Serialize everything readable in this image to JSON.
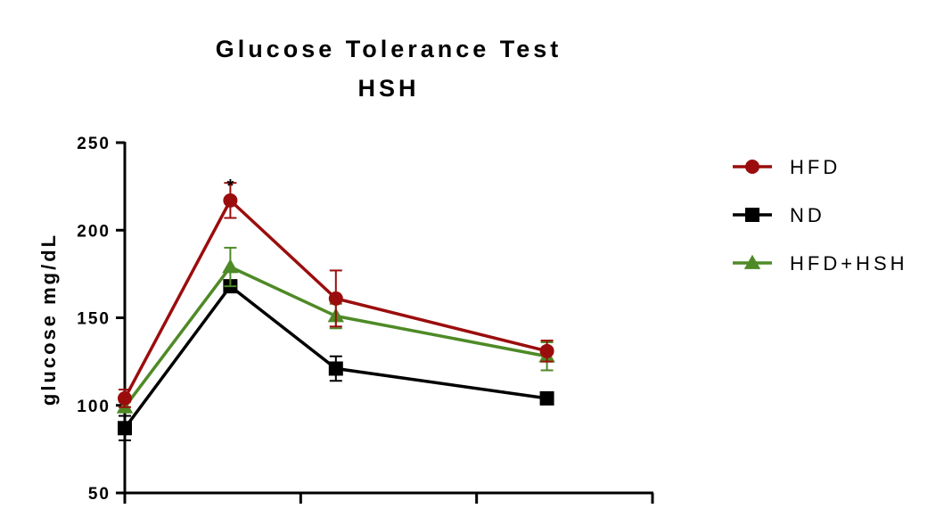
{
  "chart_data": {
    "type": "line",
    "title": "Glucose Tolerance Test",
    "subtitle": "HSH",
    "xlabel": "",
    "ylabel": "glucose mg/dL",
    "ylim": [
      50,
      250
    ],
    "y_ticks": [
      50,
      100,
      150,
      200,
      250
    ],
    "x_range": [
      0,
      150
    ],
    "x_ticks": [
      0,
      50,
      100,
      150
    ],
    "grid": false,
    "legend_position": "right",
    "x": [
      0,
      30,
      60,
      120
    ],
    "series": [
      {
        "name": "HFD",
        "marker": "circle",
        "color": "#9b0d0d",
        "values": [
          104,
          217,
          161,
          131
        ],
        "errors": [
          5,
          10,
          16,
          6
        ]
      },
      {
        "name": "ND",
        "marker": "square",
        "color": "#000000",
        "values": [
          87,
          168,
          121,
          104
        ],
        "errors": [
          7,
          3,
          7,
          1
        ]
      },
      {
        "name": "HFD+HSH",
        "marker": "triangle",
        "color": "#4e8a26",
        "values": [
          99,
          179,
          151,
          128
        ],
        "errors": [
          3,
          11,
          7,
          8
        ]
      }
    ],
    "annotations": [
      {
        "text": "*",
        "x": 30,
        "y": 227
      }
    ]
  }
}
